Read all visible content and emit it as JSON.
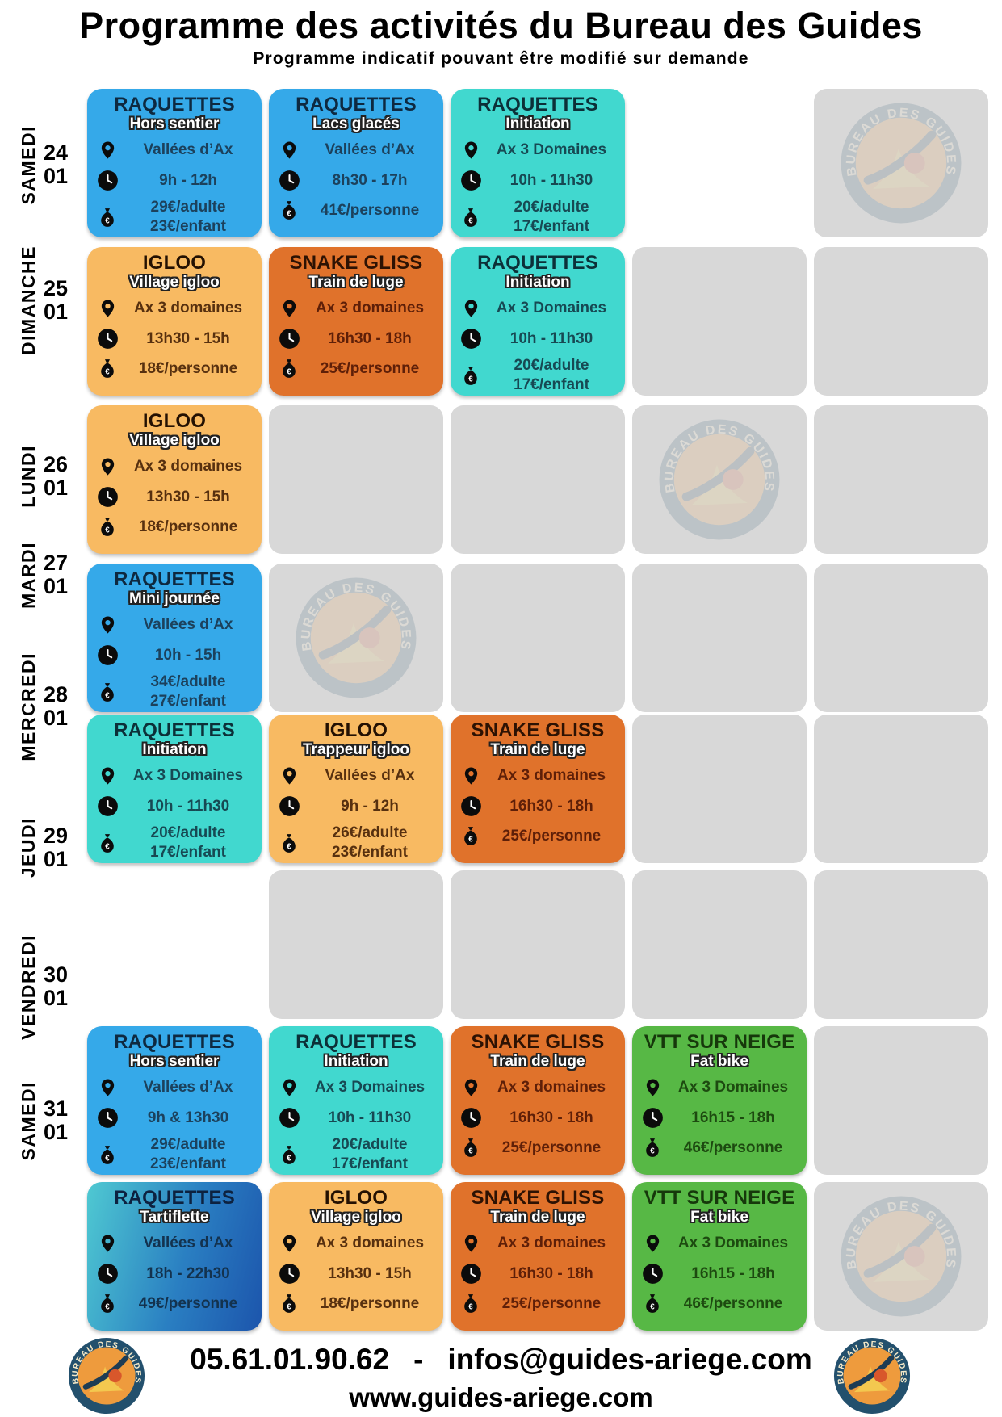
{
  "header": {
    "title": "Programme des activités du Bureau des Guides",
    "subtitle": "Programme indicatif pouvant être modifié sur demande"
  },
  "palette": {
    "blue": "#35a9e9",
    "teal": "#41d8cf",
    "igloo": "#f8ba62",
    "snake": "#e0722b",
    "green": "#57b845",
    "gradient": "linear-gradient(105deg,#4fc9d2 0%,#2a7fc2 55%,#1c55ac 100%)",
    "placeholder": "#d8d8d8",
    "logo_ring": "#23506d",
    "logo_inner": "#ee9b3d"
  },
  "icons": {
    "location": "map-pin",
    "time": "clock",
    "price": "money-bag"
  },
  "grid": {
    "rows": [
      {
        "day": "SAMEDI",
        "date": [
          "24",
          "01"
        ],
        "cells": [
          {
            "kind": "activity",
            "variant": "blue",
            "title": "RAQUETTES",
            "subtitle": "Hors sentier",
            "location": "Vallées d’Ax",
            "time": "9h - 12h",
            "prices": [
              "29€/adulte",
              "23€/enfant"
            ]
          },
          {
            "kind": "activity",
            "variant": "blue",
            "title": "RAQUETTES",
            "subtitle": "Lacs glacés",
            "location": "Vallées d’Ax",
            "time": "8h30 - 17h",
            "prices": [
              "41€/personne"
            ]
          },
          {
            "kind": "activity",
            "variant": "teal",
            "title": "RAQUETTES",
            "subtitle": "Initiation",
            "location": "Ax 3 Domaines",
            "time": "10h - 11h30",
            "prices": [
              "20€/adulte",
              "17€/enfant"
            ]
          },
          {
            "kind": "empty"
          },
          {
            "kind": "placeholder",
            "watermark": true
          }
        ]
      },
      {
        "day": "DIMANCHE",
        "date": [
          "25",
          "01"
        ],
        "cells": [
          {
            "kind": "activity",
            "variant": "igloo",
            "title": "IGLOO",
            "subtitle": "Village igloo",
            "location": "Ax 3 domaines",
            "time": "13h30 - 15h",
            "prices": [
              "18€/personne"
            ]
          },
          {
            "kind": "activity",
            "variant": "snake",
            "title": "SNAKE GLISS",
            "subtitle": "Train de luge",
            "location": "Ax 3 domaines",
            "time": "16h30 - 18h",
            "prices": [
              "25€/personne"
            ]
          },
          {
            "kind": "activity",
            "variant": "teal",
            "title": "RAQUETTES",
            "subtitle": "Initiation",
            "location": "Ax 3 Domaines",
            "time": "10h - 11h30",
            "prices": [
              "20€/adulte",
              "17€/enfant"
            ]
          },
          {
            "kind": "placeholder",
            "watermark": false
          },
          {
            "kind": "placeholder",
            "watermark": false
          }
        ]
      },
      {
        "day": "LUNDI",
        "date": [
          "26",
          "01"
        ],
        "cells": [
          {
            "kind": "activity",
            "variant": "igloo",
            "title": "IGLOO",
            "subtitle": "Village igloo",
            "location": "Ax 3 domaines",
            "time": "13h30 - 15h",
            "prices": [
              "18€/personne"
            ]
          },
          {
            "kind": "placeholder",
            "watermark": false
          },
          {
            "kind": "placeholder",
            "watermark": false
          },
          {
            "kind": "placeholder",
            "watermark": true
          },
          {
            "kind": "placeholder",
            "watermark": false
          }
        ]
      },
      {
        "day": "MARDI",
        "date": [
          "27",
          "01"
        ],
        "cells": [
          {
            "kind": "activity",
            "variant": "blue",
            "title": "RAQUETTES",
            "subtitle": "Mini journée",
            "location": "Vallées d’Ax",
            "time": "10h - 15h",
            "prices": [
              "34€/adulte",
              "27€/enfant"
            ]
          },
          {
            "kind": "placeholder",
            "watermark": true
          },
          {
            "kind": "placeholder",
            "watermark": false
          },
          {
            "kind": "placeholder",
            "watermark": false
          },
          {
            "kind": "placeholder",
            "watermark": false
          }
        ]
      },
      {
        "day": "MERCREDI",
        "date": [
          "28",
          "01"
        ],
        "cells": [
          {
            "kind": "activity",
            "variant": "teal",
            "title": "RAQUETTES",
            "subtitle": "Initiation",
            "location": "Ax 3 Domaines",
            "time": "10h - 11h30",
            "prices": [
              "20€/adulte",
              "17€/enfant"
            ]
          },
          {
            "kind": "activity",
            "variant": "igloo",
            "title": "IGLOO",
            "subtitle": "Trappeur igloo",
            "location": "Vallées d’Ax",
            "time": "9h - 12h",
            "prices": [
              "26€/adulte",
              "23€/enfant"
            ]
          },
          {
            "kind": "activity",
            "variant": "snake",
            "title": "SNAKE GLISS",
            "subtitle": "Train de luge",
            "location": "Ax 3 domaines",
            "time": "16h30 - 18h",
            "prices": [
              "25€/personne"
            ]
          },
          {
            "kind": "placeholder",
            "watermark": false
          },
          {
            "kind": "placeholder",
            "watermark": false
          }
        ]
      },
      {
        "day": "JEUDI",
        "date": [
          "29",
          "01"
        ],
        "cells": [
          {
            "kind": "empty"
          },
          {
            "kind": "placeholder",
            "watermark": false
          },
          {
            "kind": "placeholder",
            "watermark": false
          },
          {
            "kind": "placeholder",
            "watermark": false
          },
          {
            "kind": "placeholder",
            "watermark": false
          }
        ]
      },
      {
        "day": "VENDREDI",
        "date": [
          "30",
          "01"
        ],
        "cells": [
          {
            "kind": "activity",
            "variant": "blue",
            "title": "RAQUETTES",
            "subtitle": "Hors sentier",
            "location": "Vallées d’Ax",
            "time": "9h & 13h30",
            "prices": [
              "29€/adulte",
              "23€/enfant"
            ]
          },
          {
            "kind": "activity",
            "variant": "teal",
            "title": "RAQUETTES",
            "subtitle": "Initiation",
            "location": "Ax 3 Domaines",
            "time": "10h - 11h30",
            "prices": [
              "20€/adulte",
              "17€/enfant"
            ]
          },
          {
            "kind": "activity",
            "variant": "snake",
            "title": "SNAKE GLISS",
            "subtitle": "Train de luge",
            "location": "Ax 3 domaines",
            "time": "16h30 - 18h",
            "prices": [
              "25€/personne"
            ]
          },
          {
            "kind": "activity",
            "variant": "green",
            "title": "VTT SUR NEIGE",
            "subtitle": "Fat bike",
            "location": "Ax 3 Domaines",
            "time": "16h15 - 18h",
            "prices": [
              "46€/personne"
            ]
          },
          {
            "kind": "placeholder",
            "watermark": false
          }
        ]
      },
      {
        "day": "SAMEDI",
        "date": [
          "31",
          "01"
        ],
        "cells": [
          {
            "kind": "activity",
            "variant": "gradient",
            "title": "RAQUETTES",
            "subtitle": "Tartiflette",
            "location": "Vallées d’Ax",
            "time": "18h - 22h30",
            "prices": [
              "49€/personne"
            ]
          },
          {
            "kind": "activity",
            "variant": "igloo",
            "title": "IGLOO",
            "subtitle": "Village igloo",
            "location": "Ax 3 domaines",
            "time": "13h30 - 15h",
            "prices": [
              "18€/personne"
            ]
          },
          {
            "kind": "activity",
            "variant": "snake",
            "title": "SNAKE GLISS",
            "subtitle": "Train de luge",
            "location": "Ax 3 domaines",
            "time": "16h30 - 18h",
            "prices": [
              "25€/personne"
            ]
          },
          {
            "kind": "activity",
            "variant": "green",
            "title": "VTT SUR NEIGE",
            "subtitle": "Fat bike",
            "location": "Ax 3 Domaines",
            "time": "16h15 - 18h",
            "prices": [
              "46€/personne"
            ]
          },
          {
            "kind": "placeholder",
            "watermark": true
          }
        ]
      }
    ]
  },
  "footer": {
    "phone": "05.61.01.90.62",
    "separator": "-",
    "email": "infos@guides-ariege.com",
    "website": "www.guides-ariege.com",
    "logo_text": "BUREAU DES GUIDES"
  }
}
